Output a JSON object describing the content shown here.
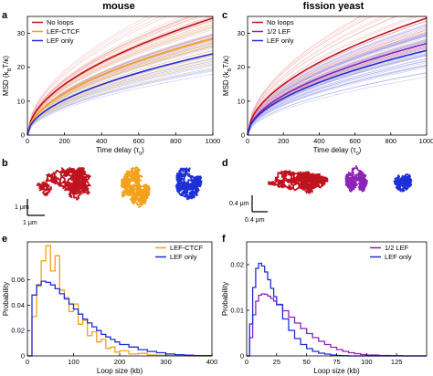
{
  "figure": {
    "titles": [
      "mouse",
      "fission yeast"
    ],
    "panels": [
      "a",
      "b",
      "c",
      "d",
      "e",
      "f"
    ],
    "scalebars": {
      "b": {
        "v": "1 μm",
        "h": "1 μm"
      },
      "d": {
        "v": "0.4 μm",
        "h": "0.4 μm"
      }
    }
  },
  "colors": {
    "red": "#c1121f",
    "orange": "#f4a11d",
    "blue": "#1f2fd6",
    "purple": "#8b23b8",
    "red_light": "#f0a0a0",
    "orange_light": "#f8cf8a",
    "blue_light": "#a8aef0"
  },
  "chart_data": [
    {
      "id": "a",
      "type": "line",
      "title": "mouse",
      "xlabel": "Time delay (τ",
      "xlabel_sub": "0",
      "xlabel_end": ")",
      "ylabel": "MSD (k",
      "ylabel_sub1": "B",
      "ylabel_mid": "T/κ)",
      "xlim": [
        0,
        1000
      ],
      "ylim": [
        0,
        35
      ],
      "xticks": [
        "0",
        "200",
        "400",
        "600",
        "800",
        "1000"
      ],
      "yticks": [
        "0",
        "10",
        "20",
        "30"
      ],
      "xtick_values": [
        0,
        200,
        400,
        600,
        800,
        1000
      ],
      "ytick_values": [
        0,
        10,
        20,
        30
      ],
      "legend_position": "top-left",
      "series": [
        {
          "name": "No loops",
          "color_key": "red",
          "end_value": 34.5,
          "exponent": 0.52
        },
        {
          "name": "LEF-CTCF",
          "color_key": "orange",
          "end_value": 28.5,
          "exponent": 0.52
        },
        {
          "name": "LEF only",
          "color_key": "blue",
          "end_value": 24,
          "exponent": 0.52
        }
      ]
    },
    {
      "id": "c",
      "type": "line",
      "title": "fission yeast",
      "xlabel": "Time delay (τ",
      "xlabel_sub": "0",
      "xlabel_end": ")",
      "ylabel": "MSD (k",
      "ylabel_sub1": "B",
      "ylabel_mid": "T/κ)",
      "xlim": [
        0,
        1000
      ],
      "ylim": [
        0,
        35
      ],
      "xticks": [
        "0",
        "200",
        "400",
        "600",
        "800",
        "1000"
      ],
      "yticks": [
        "0",
        "10",
        "20",
        "30"
      ],
      "xtick_values": [
        0,
        200,
        400,
        600,
        800,
        1000
      ],
      "ytick_values": [
        0,
        10,
        20,
        30
      ],
      "legend_position": "top-left",
      "series": [
        {
          "name": "No loops",
          "color_key": "red",
          "end_value": 34.5,
          "exponent": 0.52
        },
        {
          "name": "1/2 LEF",
          "color_key": "purple",
          "end_value": 27,
          "exponent": 0.52
        },
        {
          "name": "LEF only",
          "color_key": "blue",
          "end_value": 25,
          "exponent": 0.52
        }
      ]
    },
    {
      "id": "e",
      "type": "line",
      "xlabel": "Loop size (kb)",
      "ylabel": "Probability",
      "xlim": [
        0,
        400
      ],
      "ylim": [
        0,
        0.09
      ],
      "xticks": [
        "0",
        "100",
        "200",
        "300",
        "400"
      ],
      "yticks": [
        "0",
        "0.02",
        "0.04",
        "0.06"
      ],
      "xtick_values": [
        0,
        100,
        200,
        300,
        400
      ],
      "ytick_values": [
        0,
        0.02,
        0.04,
        0.06
      ],
      "legend_position": "top-right",
      "series": [
        {
          "name": "LEF-CTCF",
          "color_key": "orange",
          "x": [
            0,
            10,
            20,
            30,
            40,
            50,
            60,
            70,
            80,
            90,
            100,
            110,
            120,
            130,
            140,
            150,
            160,
            170,
            180,
            190,
            200,
            220,
            240,
            260,
            280,
            300,
            320,
            340,
            360,
            400
          ],
          "y": [
            0,
            0.031,
            0.055,
            0.075,
            0.087,
            0.067,
            0.079,
            0.052,
            0.046,
            0.035,
            0.041,
            0.025,
            0.028,
            0.016,
            0.019,
            0.011,
            0.013,
            0.006,
            0.007,
            0.003,
            0.004,
            0.0015,
            0.002,
            0.0008,
            0.0005,
            0.0004,
            0.0002,
            0.0001,
            0,
            0
          ]
        },
        {
          "name": "LEF only",
          "color_key": "blue",
          "x": [
            0,
            10,
            20,
            30,
            40,
            50,
            60,
            70,
            80,
            90,
            100,
            110,
            120,
            130,
            140,
            150,
            160,
            170,
            180,
            190,
            200,
            220,
            240,
            260,
            280,
            300,
            320,
            340,
            360,
            400
          ],
          "y": [
            0,
            0.048,
            0.056,
            0.059,
            0.058,
            0.056,
            0.053,
            0.049,
            0.045,
            0.041,
            0.037,
            0.033,
            0.029,
            0.026,
            0.023,
            0.02,
            0.017,
            0.015,
            0.013,
            0.011,
            0.009,
            0.007,
            0.005,
            0.0035,
            0.0025,
            0.0015,
            0.001,
            0.0006,
            0.0003,
            0
          ]
        }
      ]
    },
    {
      "id": "f",
      "type": "line",
      "xlabel": "Loop size (kb)",
      "ylabel": "Probability",
      "xlim": [
        0,
        150
      ],
      "ylim": [
        0,
        0.025
      ],
      "xticks": [
        "0",
        "25",
        "50",
        "75",
        "100",
        "125"
      ],
      "yticks": [
        "0",
        "0.01",
        "0.02"
      ],
      "xtick_values": [
        0,
        25,
        50,
        75,
        100,
        125
      ],
      "ytick_values": [
        0,
        0.01,
        0.02
      ],
      "legend_position": "top-right",
      "series": [
        {
          "name": "1/2 LEF",
          "color_key": "purple",
          "x": [
            0,
            2.5,
            5,
            7.5,
            10,
            12.5,
            15,
            17.5,
            20,
            22.5,
            25,
            30,
            35,
            40,
            45,
            50,
            55,
            60,
            65,
            70,
            75,
            80,
            85,
            90,
            95,
            100,
            110,
            120,
            130,
            140,
            150
          ],
          "y": [
            0,
            0.004,
            0.009,
            0.012,
            0.0133,
            0.0136,
            0.0135,
            0.0131,
            0.0126,
            0.012,
            0.0113,
            0.0099,
            0.0085,
            0.0072,
            0.006,
            0.0049,
            0.004,
            0.0032,
            0.0025,
            0.0019,
            0.0014,
            0.001,
            0.0007,
            0.0005,
            0.0003,
            0.0002,
            0.0001,
            5e-05,
            0,
            0,
            0
          ]
        },
        {
          "name": "LEF only",
          "color_key": "blue",
          "x": [
            0,
            2.5,
            5,
            7.5,
            10,
            12.5,
            15,
            17.5,
            20,
            22.5,
            25,
            30,
            35,
            40,
            45,
            50,
            55,
            60,
            65,
            70,
            75,
            80,
            85,
            90,
            95,
            100,
            110,
            120,
            130,
            140,
            150
          ],
          "y": [
            0,
            0.007,
            0.015,
            0.0192,
            0.0203,
            0.0197,
            0.0184,
            0.0167,
            0.0148,
            0.013,
            0.0112,
            0.0081,
            0.0056,
            0.0038,
            0.0025,
            0.0016,
            0.001,
            0.0006,
            0.0004,
            0.0002,
            0.0001,
            5e-05,
            0,
            0,
            0,
            0,
            0,
            0,
            0,
            0,
            0
          ]
        }
      ]
    }
  ]
}
